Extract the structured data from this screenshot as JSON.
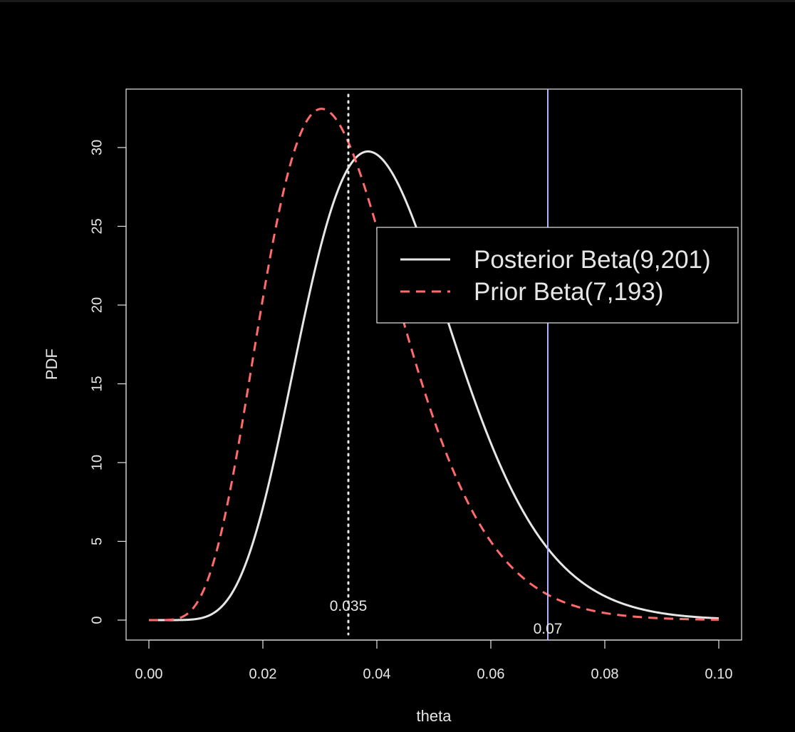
{
  "chart_data": {
    "type": "line",
    "title": "",
    "xlabel": "theta",
    "ylabel": "PDF",
    "xlim": [
      0.0,
      0.1
    ],
    "ylim": [
      0,
      33
    ],
    "x_ticks": [
      "0.00",
      "0.02",
      "0.04",
      "0.06",
      "0.08",
      "0.10"
    ],
    "x_tick_values": [
      0.0,
      0.02,
      0.04,
      0.06,
      0.08,
      0.1
    ],
    "y_ticks": [
      "0",
      "5",
      "10",
      "15",
      "20",
      "25",
      "30"
    ],
    "y_tick_values": [
      0,
      5,
      10,
      15,
      20,
      25,
      30
    ],
    "grid": false,
    "legend_position": "right, upper-middle",
    "series": [
      {
        "name": "Posterior Beta(9,201)",
        "dist": "beta",
        "a": 9,
        "b": 201,
        "color": "#e6e6e6",
        "style": "solid"
      },
      {
        "name": "Prior Beta(7,193)",
        "dist": "beta",
        "a": 7,
        "b": 193,
        "color": "#ff6b6b",
        "style": "dashed"
      }
    ],
    "vlines": [
      {
        "x": 0.035,
        "label": "0.035",
        "color": "#e6e6e6",
        "style": "dotted"
      },
      {
        "x": 0.07,
        "label": "0.07",
        "color": "#b3b3ff",
        "style": "solid"
      }
    ]
  }
}
